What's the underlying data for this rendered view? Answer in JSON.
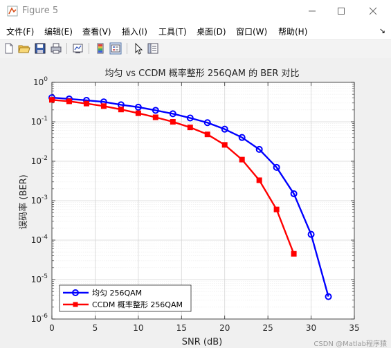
{
  "window": {
    "title": "Figure 5"
  },
  "menu": {
    "items": [
      "文件(F)",
      "编辑(E)",
      "查看(V)",
      "插入(I)",
      "工具(T)",
      "桌面(D)",
      "窗口(W)",
      "帮助(H)"
    ],
    "overflow": "↘"
  },
  "toolbar": {
    "icons": [
      "new-figure-icon",
      "open-file-icon",
      "save-icon",
      "print-icon",
      "link-plot-icon",
      "colorbar-icon",
      "legend-icon",
      "pointer-icon",
      "property-editor-icon"
    ]
  },
  "watermark": "CSDN @Matlab程序猿",
  "colors": {
    "series1": "#0000ff",
    "series2": "#ff0000",
    "figure_bg": "#f0f0f0"
  },
  "chart_data": {
    "type": "line",
    "title": "均匀 vs CCDM 概率整形 256QAM 的 BER 对比",
    "xlabel": "SNR (dB)",
    "ylabel": "误码率 (BER)",
    "xlim": [
      0,
      35
    ],
    "ylim": [
      1e-06,
      1
    ],
    "yscale": "log",
    "xticks": [
      "0",
      "5",
      "10",
      "15",
      "20",
      "25",
      "30",
      "35"
    ],
    "yticks": [
      "10^0",
      "10^-1",
      "10^-2",
      "10^-3",
      "10^-4",
      "10^-5",
      "10^-6"
    ],
    "grid": true,
    "legend_position": "bottom-left",
    "series": [
      {
        "name": "均匀 256QAM",
        "color": "#0000ff",
        "marker": "circle",
        "x": [
          0,
          2,
          4,
          6,
          8,
          10,
          12,
          14,
          16,
          18,
          20,
          22,
          24,
          26,
          28,
          30,
          32
        ],
        "y": [
          0.41,
          0.38,
          0.35,
          0.32,
          0.27,
          0.235,
          0.195,
          0.16,
          0.125,
          0.095,
          0.065,
          0.04,
          0.02,
          0.007,
          0.0015,
          0.00014,
          3.7e-06
        ]
      },
      {
        "name": "CCDM 概率整形 256QAM",
        "color": "#ff0000",
        "marker": "square",
        "x": [
          0,
          2,
          4,
          6,
          8,
          10,
          12,
          14,
          16,
          18,
          20,
          22,
          24,
          26,
          28
        ],
        "y": [
          0.36,
          0.33,
          0.29,
          0.25,
          0.205,
          0.165,
          0.13,
          0.1,
          0.072,
          0.048,
          0.026,
          0.011,
          0.0033,
          0.0006,
          4.5e-05
        ]
      }
    ]
  }
}
